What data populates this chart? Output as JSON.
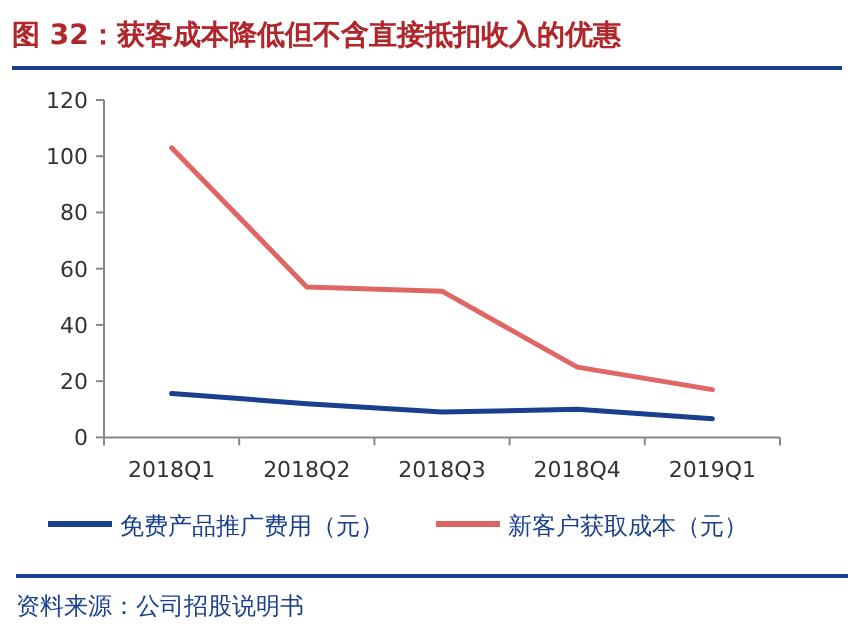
{
  "chart_data": {
    "type": "line",
    "title": "图 32：获客成本降低但不含直接抵扣收入的优惠",
    "categories": [
      "2018Q1",
      "2018Q2",
      "2018Q3",
      "2018Q4",
      "2019Q1"
    ],
    "series": [
      {
        "name": "免费产品推广费用（元）",
        "color": "#1a3f8f",
        "values": [
          15.6,
          12,
          9,
          10,
          6.6
        ]
      },
      {
        "name": "新客户获取成本（元）",
        "color": "#e06666",
        "values": [
          103,
          53.5,
          52,
          25,
          17
        ]
      }
    ],
    "ylim": [
      0,
      120
    ],
    "yticks": [
      0,
      20,
      40,
      60,
      80,
      100,
      120
    ],
    "grid": false,
    "legend": "bottom",
    "marker": "none",
    "line_style": "solid",
    "annotations": [
      "资料来源：公司招股说明书"
    ]
  }
}
